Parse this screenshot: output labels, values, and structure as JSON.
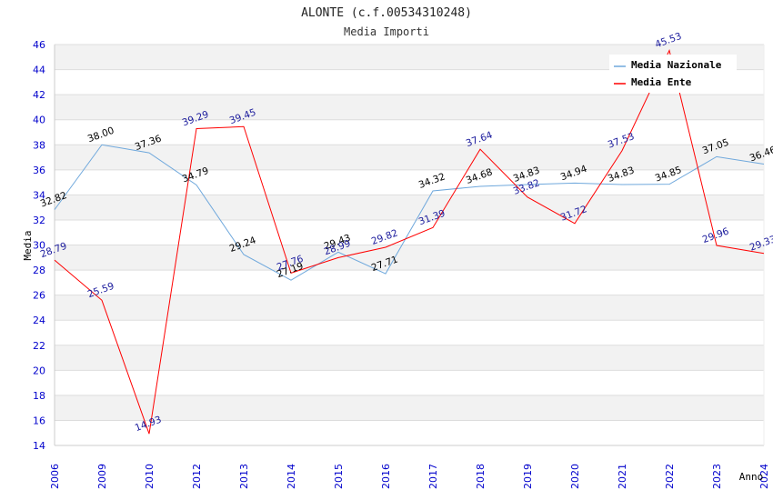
{
  "chart_data": {
    "type": "line",
    "title": "ALONTE (c.f.00534310248)",
    "subtitle": "Media Importi",
    "xlabel": "Anno",
    "ylabel": "Media",
    "ylim": [
      14,
      46
    ],
    "yticks": [
      14,
      16,
      18,
      20,
      22,
      24,
      26,
      28,
      30,
      32,
      34,
      36,
      38,
      40,
      42,
      44,
      46
    ],
    "categories": [
      "2006",
      "2009",
      "2010",
      "2012",
      "2013",
      "2014",
      "2015",
      "2016",
      "2017",
      "2018",
      "2019",
      "2020",
      "2021",
      "2022",
      "2023",
      "2024"
    ],
    "series": [
      {
        "name": "Media Nazionale",
        "color": "#6fa8dc",
        "values": [
          32.82,
          38.0,
          37.36,
          34.79,
          29.24,
          27.19,
          29.43,
          27.71,
          34.32,
          34.68,
          34.83,
          34.94,
          34.83,
          34.85,
          37.05,
          36.46
        ],
        "labels": [
          "32.82",
          "38.00",
          "37.36",
          "34.79",
          "29.24",
          "27.19",
          "29.43",
          "27.71",
          "34.32",
          "34.68",
          "34.83",
          "34.94",
          "34.83",
          "34.85",
          "37.05",
          "36.46"
        ]
      },
      {
        "name": "Media Ente",
        "color": "#ff0000",
        "values": [
          28.79,
          25.59,
          14.93,
          39.29,
          39.45,
          27.76,
          28.99,
          29.82,
          31.39,
          37.64,
          33.82,
          31.72,
          37.53,
          45.53,
          29.96,
          29.33
        ],
        "labels": [
          "28.79",
          "25.59",
          "14.93",
          "39.29",
          "39.45",
          "27.76",
          "28.99",
          "29.82",
          "31.39",
          "37.64",
          "33.82",
          "31.72",
          "37.53",
          "45.53",
          "29.96",
          "29.33"
        ]
      }
    ],
    "grid": true,
    "legend_position": "top-right"
  }
}
